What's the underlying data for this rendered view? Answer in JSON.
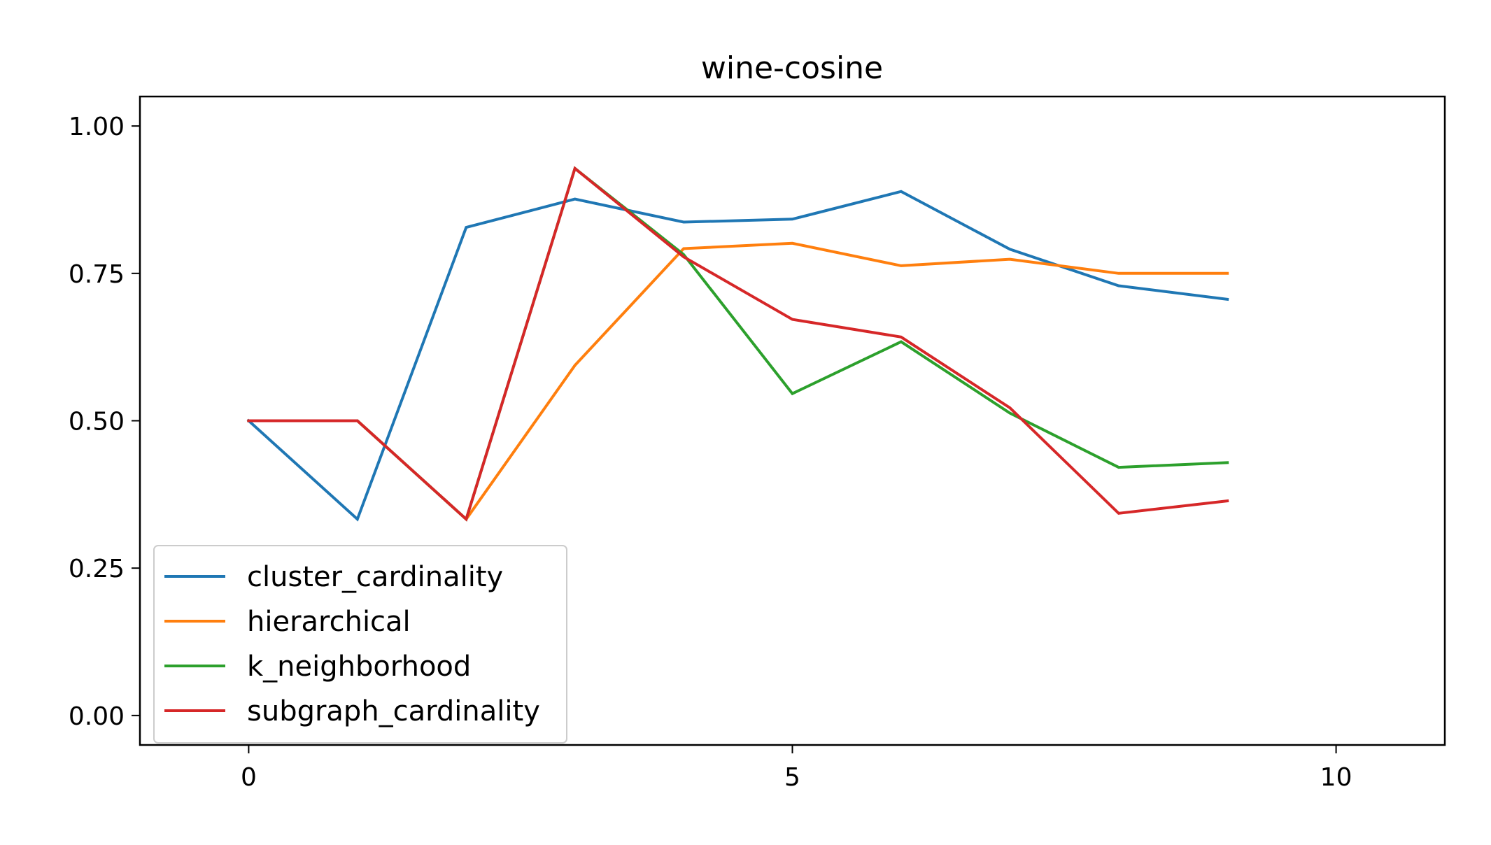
{
  "chart_data": {
    "type": "line",
    "title": "wine-cosine",
    "xlabel": "",
    "ylabel": "",
    "xlim": [
      -1,
      11
    ],
    "ylim": [
      -0.05,
      1.05
    ],
    "xticks": [
      0,
      5,
      10
    ],
    "xtick_labels": [
      "0",
      "5",
      "10"
    ],
    "yticks": [
      0,
      0.25,
      0.5,
      0.75,
      1.0
    ],
    "ytick_labels": [
      "0.00",
      "0.25",
      "0.50",
      "0.75",
      "1.00"
    ],
    "grid": false,
    "legend_position": "lower-left",
    "x": [
      0,
      1,
      2,
      3,
      4,
      5,
      6,
      7,
      8,
      9
    ],
    "series": [
      {
        "name": "cluster_cardinality",
        "color": "#1f77b4",
        "values": [
          0.5,
          0.333,
          0.828,
          0.876,
          0.837,
          0.842,
          0.889,
          0.791,
          0.729,
          0.706
        ]
      },
      {
        "name": "hierarchical",
        "color": "#ff7f0e",
        "values": [
          0.5,
          0.5,
          0.333,
          0.594,
          0.792,
          0.801,
          0.763,
          0.774,
          0.75,
          0.75
        ]
      },
      {
        "name": "k_neighborhood",
        "color": "#2ca02c",
        "values": [
          0.5,
          0.5,
          0.333,
          0.928,
          0.782,
          0.546,
          0.634,
          0.513,
          0.421,
          0.429
        ]
      },
      {
        "name": "subgraph_cardinality",
        "color": "#d62728",
        "values": [
          0.5,
          0.5,
          0.333,
          0.928,
          0.778,
          0.672,
          0.642,
          0.522,
          0.343,
          0.364
        ]
      }
    ]
  }
}
